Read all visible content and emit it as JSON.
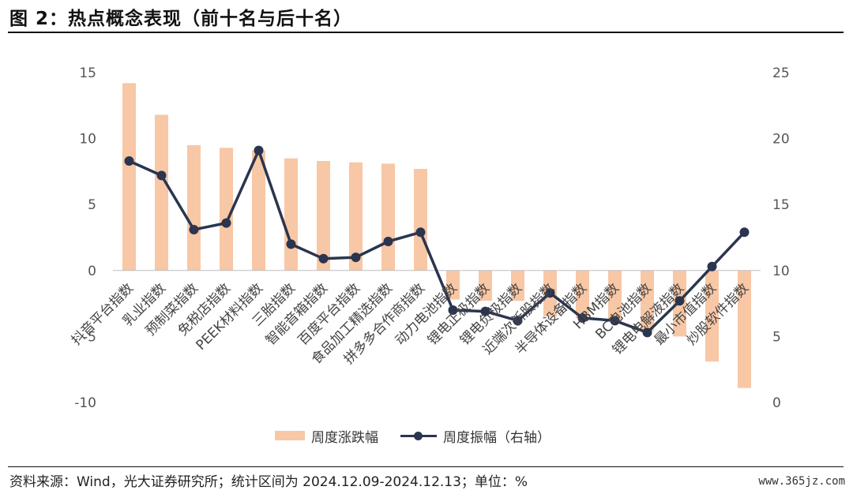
{
  "figure_title": "图 2：热点概念表现（前十名与后十名）",
  "source_note": "资料来源：Wind，光大证券研究所；统计区间为 2024.12.09-2024.12.13；单位：%",
  "watermark": "www.365jz.com",
  "colors": {
    "bar": "#f8c7a5",
    "line": "#2a354f"
  },
  "chart_data": {
    "type": "bar",
    "title": "",
    "categories": [
      "抖音平台指数",
      "乳业指数",
      "预制菜指数",
      "免税店指数",
      "PEEK材料指数",
      "三胎指数",
      "智能音箱指数",
      "百度平台指数",
      "食品加工精选指数",
      "拼多多合作商指数",
      "动力电池指数",
      "锂电正极指数",
      "锂电负极指数",
      "近端次新股指数",
      "半导体设备指数",
      "HBM指数",
      "BC电池指数",
      "锂电电解液指数",
      "最小市值指数",
      "炒股软件指数"
    ],
    "series": [
      {
        "name": "周度涨跌幅",
        "type": "bar",
        "axis": "left",
        "values": [
          14.2,
          11.8,
          9.5,
          9.3,
          9.1,
          8.5,
          8.3,
          8.2,
          8.1,
          7.7,
          -2.2,
          -2.3,
          -2.3,
          -3.5,
          -3.6,
          -3.8,
          -4.6,
          -5.0,
          -6.9,
          -8.9
        ]
      },
      {
        "name": "周度振幅（右轴）",
        "type": "line",
        "axis": "right",
        "values": [
          18.3,
          17.2,
          13.1,
          13.6,
          19.1,
          12.0,
          10.9,
          11.0,
          12.2,
          12.9,
          7.0,
          6.9,
          6.2,
          8.3,
          6.4,
          6.2,
          5.3,
          7.7,
          10.3,
          12.9
        ]
      }
    ],
    "y_left": {
      "ylim": [
        -10,
        15
      ],
      "ticks": [
        -10,
        -5,
        0,
        5,
        10,
        15
      ],
      "tick_labels": [
        "-10",
        "-5",
        "0",
        "5",
        "10",
        "15"
      ]
    },
    "y_right": {
      "ylim": [
        0,
        25
      ],
      "ticks": [
        0,
        5,
        10,
        15,
        20,
        25
      ],
      "tick_labels": [
        "0",
        "5",
        "10",
        "15",
        "20",
        "25"
      ]
    },
    "legend": {
      "position": "bottom",
      "entries": [
        "周度涨跌幅",
        "周度振幅（右轴）"
      ]
    },
    "grid": false
  }
}
